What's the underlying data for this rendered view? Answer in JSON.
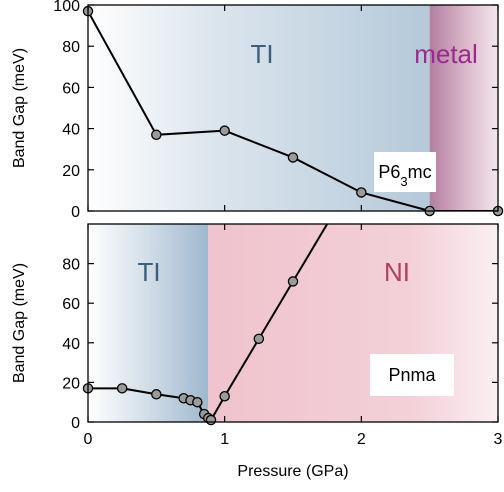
{
  "chart_data": [
    {
      "type": "line",
      "panel": "top",
      "xlim": [
        0,
        3
      ],
      "ylim": [
        0,
        100
      ],
      "xticks": [
        0,
        1,
        2,
        3
      ],
      "yticks": [
        0,
        20,
        40,
        60,
        80,
        100
      ],
      "ylabel": "Band Gap (meV)",
      "x": [
        0,
        0.5,
        1.0,
        1.5,
        2.0,
        2.5,
        3.0
      ],
      "y": [
        97,
        37,
        39,
        26,
        9,
        0,
        0
      ],
      "regions": [
        {
          "label": "TI",
          "x_range": [
            0,
            2.5
          ],
          "color": "#b9ccdc",
          "label_color": "#3c5f7e"
        },
        {
          "label": "metal",
          "x_range": [
            2.5,
            3.0
          ],
          "color": "#c08aa9",
          "label_color": "#9a2a8f"
        }
      ],
      "annotation": {
        "label": "P6",
        "subscript": "3",
        "suffix": "mc"
      }
    },
    {
      "type": "line",
      "panel": "bottom",
      "xlim": [
        0,
        3
      ],
      "ylim": [
        0,
        100
      ],
      "xticks": [
        0,
        1,
        2,
        3
      ],
      "xticklabels": [
        "0",
        "1",
        "2",
        "3"
      ],
      "yticks": [
        0,
        20,
        40,
        60,
        80
      ],
      "xlabel": "Pressure (GPa)",
      "ylabel": "Band Gap (meV)",
      "x": [
        0,
        0.25,
        0.5,
        0.7,
        0.75,
        0.8,
        0.85,
        0.88,
        0.9,
        1.0,
        1.25,
        1.5,
        1.75
      ],
      "y": [
        17,
        17,
        14,
        12,
        11,
        10,
        4,
        2,
        1,
        13,
        42,
        71,
        100
      ],
      "markers_count": 12,
      "regions": [
        {
          "label": "TI",
          "x_range": [
            0,
            0.88
          ],
          "color": "#b9ccdc",
          "label_color": "#3c5f7e"
        },
        {
          "label": "NI",
          "x_range": [
            0.88,
            3.0
          ],
          "color": "#f0c3cd",
          "label_color": "#b0405c"
        }
      ],
      "annotation": {
        "label": "Pnma"
      }
    }
  ]
}
